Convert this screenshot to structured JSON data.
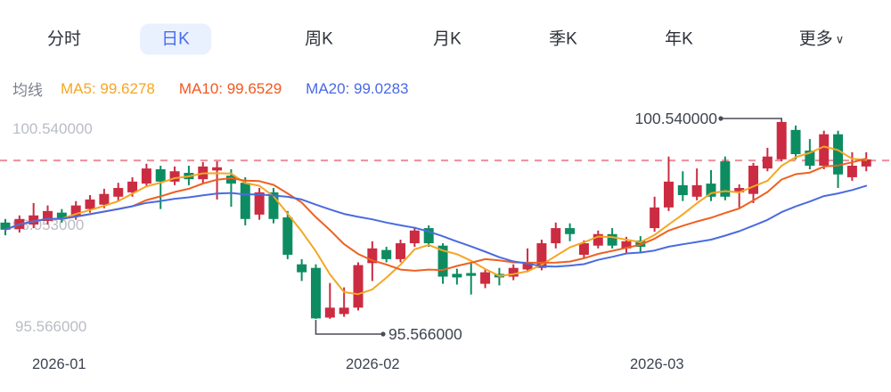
{
  "tabs": {
    "items": [
      {
        "label": "分时",
        "active": false
      },
      {
        "label": "日K",
        "active": true
      },
      {
        "label": "周K",
        "active": false
      },
      {
        "label": "月K",
        "active": false
      },
      {
        "label": "季K",
        "active": false
      },
      {
        "label": "年K",
        "active": false
      },
      {
        "label": "更多",
        "active": false
      }
    ],
    "more_chevron": "∨",
    "active_color": "#4a6bf0",
    "active_bg": "#e9f1fe"
  },
  "legend": {
    "title": "均线",
    "items": [
      {
        "text": "MA5: 99.6278",
        "color": "#f5a623"
      },
      {
        "text": "MA10: 99.6529",
        "color": "#f2571e"
      },
      {
        "text": "MA20: 99.0283",
        "color": "#4a68e8"
      }
    ]
  },
  "chart_data": {
    "type": "candlestick",
    "x_axis_labels": [
      "2026-01",
      "2026-02",
      "2026-03"
    ],
    "y_axis_labels": [
      "100.540000",
      "98.053000",
      "95.566000"
    ],
    "ylim": [
      95.566,
      100.54
    ],
    "dash_line_value": 99.55,
    "ma_periods": [
      5,
      10,
      20
    ],
    "annotations": {
      "high": {
        "label": "100.540000",
        "value": 100.54,
        "candle_index": 55
      },
      "low": {
        "label": "95.566000",
        "value": 95.566,
        "candle_index": 22
      }
    },
    "colors": {
      "up": "#cb2c42",
      "down": "#0d8c62",
      "ma5": "#f5a623",
      "ma10": "#ee6120",
      "ma20": "#4a6be0",
      "dash_line": "#ef8f9a",
      "annotation_line": "#4a4d55"
    },
    "candles": [
      {
        "o": 97.99,
        "h": 98.08,
        "l": 97.67,
        "c": 97.81
      },
      {
        "o": 97.83,
        "h": 98.17,
        "l": 97.74,
        "c": 98.08
      },
      {
        "o": 97.94,
        "h": 98.48,
        "l": 97.85,
        "c": 98.17
      },
      {
        "o": 98.03,
        "h": 98.42,
        "l": 97.94,
        "c": 98.28
      },
      {
        "o": 98.24,
        "h": 98.33,
        "l": 97.99,
        "c": 98.08
      },
      {
        "o": 98.15,
        "h": 98.53,
        "l": 98.06,
        "c": 98.42
      },
      {
        "o": 98.33,
        "h": 98.68,
        "l": 98.24,
        "c": 98.57
      },
      {
        "o": 98.44,
        "h": 98.84,
        "l": 98.35,
        "c": 98.71
      },
      {
        "o": 98.64,
        "h": 98.99,
        "l": 98.53,
        "c": 98.86
      },
      {
        "o": 98.75,
        "h": 99.13,
        "l": 98.64,
        "c": 99.02
      },
      {
        "o": 98.97,
        "h": 99.47,
        "l": 98.88,
        "c": 99.35
      },
      {
        "o": 99.33,
        "h": 99.42,
        "l": 98.33,
        "c": 99.02
      },
      {
        "o": 99.02,
        "h": 99.4,
        "l": 98.93,
        "c": 99.28
      },
      {
        "o": 99.24,
        "h": 99.42,
        "l": 98.93,
        "c": 99.08
      },
      {
        "o": 99.08,
        "h": 99.51,
        "l": 98.97,
        "c": 99.4
      },
      {
        "o": 99.3,
        "h": 99.53,
        "l": 98.57,
        "c": 99.38
      },
      {
        "o": 99.17,
        "h": 99.33,
        "l": 98.39,
        "c": 98.97
      },
      {
        "o": 98.99,
        "h": 99.13,
        "l": 97.92,
        "c": 98.08
      },
      {
        "o": 98.19,
        "h": 98.86,
        "l": 98.06,
        "c": 98.75
      },
      {
        "o": 98.75,
        "h": 98.86,
        "l": 97.97,
        "c": 98.08
      },
      {
        "o": 98.12,
        "h": 98.28,
        "l": 97.07,
        "c": 97.18
      },
      {
        "o": 96.94,
        "h": 97.07,
        "l": 96.52,
        "c": 96.74
      },
      {
        "o": 96.85,
        "h": 96.94,
        "l": 95.566,
        "c": 95.58
      },
      {
        "o": 95.6,
        "h": 96.47,
        "l": 95.57,
        "c": 95.85
      },
      {
        "o": 95.69,
        "h": 96.36,
        "l": 95.62,
        "c": 95.85
      },
      {
        "o": 95.85,
        "h": 96.99,
        "l": 95.78,
        "c": 96.92
      },
      {
        "o": 96.97,
        "h": 97.52,
        "l": 96.52,
        "c": 97.34
      },
      {
        "o": 97.3,
        "h": 97.38,
        "l": 96.99,
        "c": 97.07
      },
      {
        "o": 97.07,
        "h": 97.56,
        "l": 96.99,
        "c": 97.47
      },
      {
        "o": 97.47,
        "h": 97.88,
        "l": 97.38,
        "c": 97.79
      },
      {
        "o": 97.85,
        "h": 97.92,
        "l": 97.38,
        "c": 97.47
      },
      {
        "o": 97.41,
        "h": 97.47,
        "l": 96.45,
        "c": 96.63
      },
      {
        "o": 96.7,
        "h": 96.83,
        "l": 96.43,
        "c": 96.61
      },
      {
        "o": 96.72,
        "h": 96.97,
        "l": 96.18,
        "c": 96.65
      },
      {
        "o": 96.45,
        "h": 96.83,
        "l": 96.34,
        "c": 96.74
      },
      {
        "o": 96.7,
        "h": 96.85,
        "l": 96.41,
        "c": 96.61
      },
      {
        "o": 96.63,
        "h": 96.94,
        "l": 96.54,
        "c": 96.85
      },
      {
        "o": 96.81,
        "h": 97.34,
        "l": 96.74,
        "c": 96.97
      },
      {
        "o": 96.85,
        "h": 97.56,
        "l": 96.79,
        "c": 97.47
      },
      {
        "o": 97.47,
        "h": 97.99,
        "l": 97.34,
        "c": 97.85
      },
      {
        "o": 97.85,
        "h": 97.97,
        "l": 97.52,
        "c": 97.7
      },
      {
        "o": 97.18,
        "h": 97.54,
        "l": 97.11,
        "c": 97.47
      },
      {
        "o": 97.41,
        "h": 97.79,
        "l": 97.34,
        "c": 97.7
      },
      {
        "o": 97.7,
        "h": 97.85,
        "l": 97.34,
        "c": 97.41
      },
      {
        "o": 97.34,
        "h": 97.63,
        "l": 97.23,
        "c": 97.52
      },
      {
        "o": 97.54,
        "h": 97.65,
        "l": 97.25,
        "c": 97.38
      },
      {
        "o": 97.85,
        "h": 98.64,
        "l": 97.76,
        "c": 98.37
      },
      {
        "o": 98.37,
        "h": 99.65,
        "l": 98.28,
        "c": 99.02
      },
      {
        "o": 98.93,
        "h": 99.28,
        "l": 98.53,
        "c": 98.68
      },
      {
        "o": 98.64,
        "h": 99.35,
        "l": 98.55,
        "c": 98.93
      },
      {
        "o": 98.97,
        "h": 99.31,
        "l": 98.53,
        "c": 98.64
      },
      {
        "o": 99.53,
        "h": 99.65,
        "l": 98.55,
        "c": 98.64
      },
      {
        "o": 98.75,
        "h": 98.95,
        "l": 98.37,
        "c": 98.86
      },
      {
        "o": 98.71,
        "h": 99.49,
        "l": 98.48,
        "c": 99.42
      },
      {
        "o": 99.35,
        "h": 99.87,
        "l": 99.28,
        "c": 99.65
      },
      {
        "o": 99.58,
        "h": 100.54,
        "l": 99.53,
        "c": 100.52
      },
      {
        "o": 100.32,
        "h": 100.43,
        "l": 99.58,
        "c": 99.71
      },
      {
        "o": 99.8,
        "h": 100.09,
        "l": 99.33,
        "c": 99.42
      },
      {
        "o": 99.42,
        "h": 100.3,
        "l": 99.33,
        "c": 100.21
      },
      {
        "o": 100.21,
        "h": 100.3,
        "l": 98.86,
        "c": 99.2
      },
      {
        "o": 99.13,
        "h": 99.76,
        "l": 99.04,
        "c": 99.42
      },
      {
        "o": 99.4,
        "h": 99.76,
        "l": 99.28,
        "c": 99.58
      }
    ]
  }
}
